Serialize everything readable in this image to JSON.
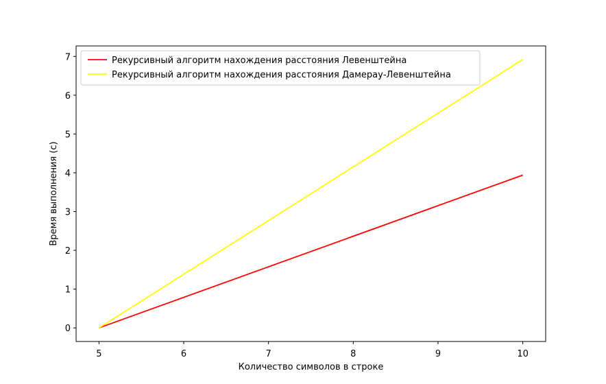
{
  "chart_data": {
    "type": "line",
    "title": "",
    "xlabel": "Количество символов в строке",
    "ylabel": "Время выполнения (с)",
    "xlim": [
      4.73,
      10.27
    ],
    "ylim": [
      -0.35,
      7.27
    ],
    "xticks": [
      5,
      6,
      7,
      8,
      9,
      10
    ],
    "yticks": [
      0,
      1,
      2,
      3,
      4,
      5,
      6,
      7
    ],
    "legend_position": "top-left",
    "grid": false,
    "x": [
      5,
      10
    ],
    "series": [
      {
        "name": "Рекурсивный алгоритм нахождения расстояния Левенштейна",
        "color": "#ff0000",
        "values": [
          0,
          3.94
        ]
      },
      {
        "name": "Рекурсивный алгоритм нахождения расстояния Дамерау-Левенштейна",
        "color": "#ffff00",
        "values": [
          0,
          6.92
        ]
      }
    ]
  }
}
